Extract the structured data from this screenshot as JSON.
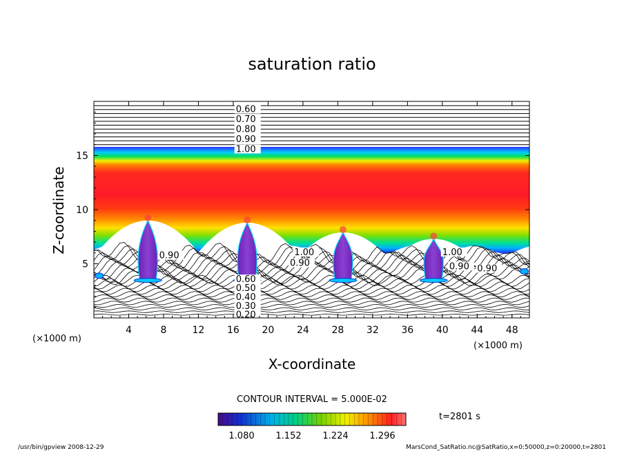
{
  "chart_data": {
    "type": "heatmap",
    "title": "saturation ratio",
    "xlabel": "X-coordinate",
    "ylabel": "Z-coordinate",
    "x_unit": "(×1000 m)",
    "y_unit": "(×1000 m)",
    "xlim": [
      0,
      50
    ],
    "ylim": [
      0,
      20
    ],
    "x_ticks": [
      4,
      8,
      12,
      16,
      20,
      24,
      28,
      32,
      36,
      40,
      44,
      48
    ],
    "y_ticks": [
      5,
      10,
      15
    ],
    "contour_interval_text": "CONTOUR INTERVAL = 5.000E-02",
    "time_text": "t=2801 s",
    "colorbar_ticks": [
      "1.080",
      "1.152",
      "1.224",
      "1.296"
    ],
    "colorbar_range": [
      1.044,
      1.332
    ],
    "color_scale": [
      "#4a0a8c",
      "#1030d0",
      "#00b0e8",
      "#00d080",
      "#7ad000",
      "#f0f000",
      "#ff9000",
      "#ff2020",
      "#ff7070"
    ],
    "upper_contour_labels": [
      "0.60",
      "0.70",
      "0.80",
      "0.90",
      "1.00"
    ],
    "lower_contour_labels": [
      "0.60",
      "0.50",
      "0.40",
      "0.30",
      "0.20"
    ],
    "mid_contour_labels": [
      "0.90",
      "1.00",
      "0.90",
      "1.00",
      "0.90",
      "0.90"
    ],
    "cloud_columns": [
      {
        "x": 6.2,
        "top": 9.0
      },
      {
        "x": 17.6,
        "top": 8.8
      },
      {
        "x": 28.6,
        "top": 7.9
      },
      {
        "x": 39.0,
        "top": 7.3
      }
    ]
  },
  "footer": {
    "left": "/usr/bin/gpview   2008-12-29",
    "right": "MarsCond_SatRatio.nc@SatRatio,x=0:50000,z=0:20000,t=2801"
  }
}
